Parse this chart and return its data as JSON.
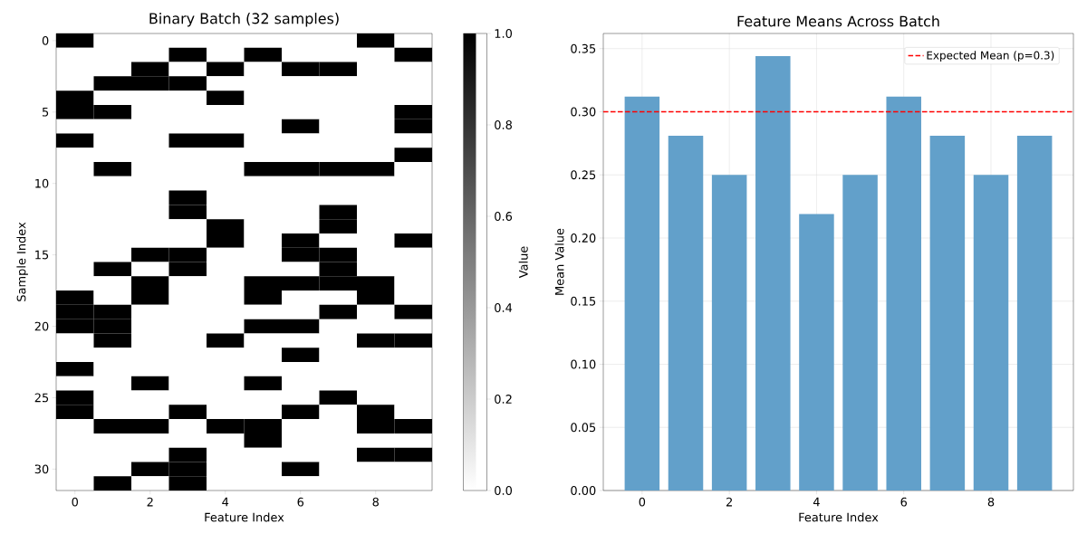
{
  "chart_data": [
    {
      "type": "heatmap",
      "title": "Binary Batch (32 samples)",
      "xlabel": "Feature Index",
      "ylabel": "Sample Index",
      "clabel": "Value",
      "categories": [
        "0",
        null,
        "2",
        null,
        "4",
        null,
        "6",
        null,
        "8",
        null
      ],
      "y_categories": [
        "0",
        null,
        null,
        null,
        null,
        "5",
        null,
        null,
        null,
        null,
        "10",
        null,
        null,
        null,
        null,
        "15",
        null,
        null,
        null,
        null,
        "20",
        null,
        null,
        null,
        null,
        "25",
        null,
        null,
        null,
        null,
        "30",
        null
      ],
      "cells": [
        [
          1,
          0,
          0,
          0,
          0,
          0,
          0,
          0,
          1,
          0
        ],
        [
          0,
          0,
          0,
          1,
          0,
          1,
          0,
          0,
          0,
          1
        ],
        [
          0,
          0,
          1,
          0,
          1,
          0,
          1,
          1,
          0,
          0
        ],
        [
          0,
          1,
          1,
          1,
          0,
          0,
          0,
          0,
          0,
          0
        ],
        [
          1,
          0,
          0,
          0,
          1,
          0,
          0,
          0,
          0,
          0
        ],
        [
          1,
          1,
          0,
          0,
          0,
          0,
          0,
          0,
          0,
          1
        ],
        [
          0,
          0,
          0,
          0,
          0,
          0,
          1,
          0,
          0,
          1
        ],
        [
          1,
          0,
          0,
          1,
          1,
          0,
          0,
          0,
          0,
          0
        ],
        [
          0,
          0,
          0,
          0,
          0,
          0,
          0,
          0,
          0,
          1
        ],
        [
          0,
          1,
          0,
          0,
          0,
          1,
          1,
          1,
          1,
          0
        ],
        [
          0,
          0,
          0,
          0,
          0,
          0,
          0,
          0,
          0,
          0
        ],
        [
          0,
          0,
          0,
          1,
          0,
          0,
          0,
          0,
          0,
          0
        ],
        [
          0,
          0,
          0,
          1,
          0,
          0,
          0,
          1,
          0,
          0
        ],
        [
          0,
          0,
          0,
          0,
          1,
          0,
          0,
          1,
          0,
          0
        ],
        [
          0,
          0,
          0,
          0,
          1,
          0,
          1,
          0,
          0,
          1
        ],
        [
          0,
          0,
          1,
          1,
          0,
          0,
          1,
          1,
          0,
          0
        ],
        [
          0,
          1,
          0,
          1,
          0,
          0,
          0,
          1,
          0,
          0
        ],
        [
          0,
          0,
          1,
          0,
          0,
          1,
          1,
          1,
          1,
          0
        ],
        [
          1,
          0,
          1,
          0,
          0,
          1,
          0,
          0,
          1,
          0
        ],
        [
          1,
          1,
          0,
          0,
          0,
          0,
          0,
          1,
          0,
          1
        ],
        [
          1,
          1,
          0,
          0,
          0,
          1,
          1,
          0,
          0,
          0
        ],
        [
          0,
          1,
          0,
          0,
          1,
          0,
          0,
          0,
          1,
          1
        ],
        [
          0,
          0,
          0,
          0,
          0,
          0,
          1,
          0,
          0,
          0
        ],
        [
          1,
          0,
          0,
          0,
          0,
          0,
          0,
          0,
          0,
          0
        ],
        [
          0,
          0,
          1,
          0,
          0,
          1,
          0,
          0,
          0,
          0
        ],
        [
          1,
          0,
          0,
          0,
          0,
          0,
          0,
          1,
          0,
          0
        ],
        [
          1,
          0,
          0,
          1,
          0,
          0,
          1,
          0,
          1,
          0
        ],
        [
          0,
          1,
          1,
          0,
          1,
          1,
          0,
          0,
          1,
          1
        ],
        [
          0,
          0,
          0,
          0,
          0,
          1,
          0,
          0,
          0,
          0
        ],
        [
          0,
          0,
          0,
          1,
          0,
          0,
          0,
          0,
          1,
          1
        ],
        [
          0,
          0,
          1,
          1,
          0,
          0,
          1,
          0,
          0,
          0
        ],
        [
          0,
          1,
          0,
          1,
          0,
          0,
          0,
          0,
          0,
          0
        ]
      ],
      "clim": [
        0,
        1
      ],
      "cticks": [
        {
          "value": 0,
          "label": "0.0"
        },
        {
          "value": 0.2,
          "label": "0.2"
        },
        {
          "value": 0.4,
          "label": "0.4"
        },
        {
          "value": 0.6,
          "label": "0.6"
        },
        {
          "value": 0.8,
          "label": "0.8"
        },
        {
          "value": 1,
          "label": "1.0"
        }
      ]
    },
    {
      "type": "bar",
      "title": "Feature Means Across Batch",
      "xlabel": "Feature Index",
      "ylabel": "Mean Value",
      "categories": [
        "0",
        null,
        "2",
        null,
        "4",
        null,
        "6",
        null,
        "8",
        null
      ],
      "values": [
        0.312,
        0.281,
        0.25,
        0.344,
        0.219,
        0.25,
        0.312,
        0.281,
        0.25,
        0.281
      ],
      "color": "#62a0ca",
      "ylim": [
        0,
        0.362
      ],
      "yticks": [
        {
          "value": 0,
          "label": "0.00"
        },
        {
          "value": 0.05,
          "label": "0.05"
        },
        {
          "value": 0.1,
          "label": "0.10"
        },
        {
          "value": 0.15,
          "label": "0.15"
        },
        {
          "value": 0.2,
          "label": "0.20"
        },
        {
          "value": 0.25,
          "label": "0.25"
        },
        {
          "value": 0.3,
          "label": "0.30"
        },
        {
          "value": 0.35,
          "label": "0.35"
        }
      ],
      "grid": true,
      "legend": "top right",
      "ref_lines": [
        {
          "axis": "y",
          "value": 0.3,
          "label": "Expected Mean (p=0.3)",
          "color": "#ff0000",
          "line_style": "dashed"
        }
      ]
    }
  ]
}
